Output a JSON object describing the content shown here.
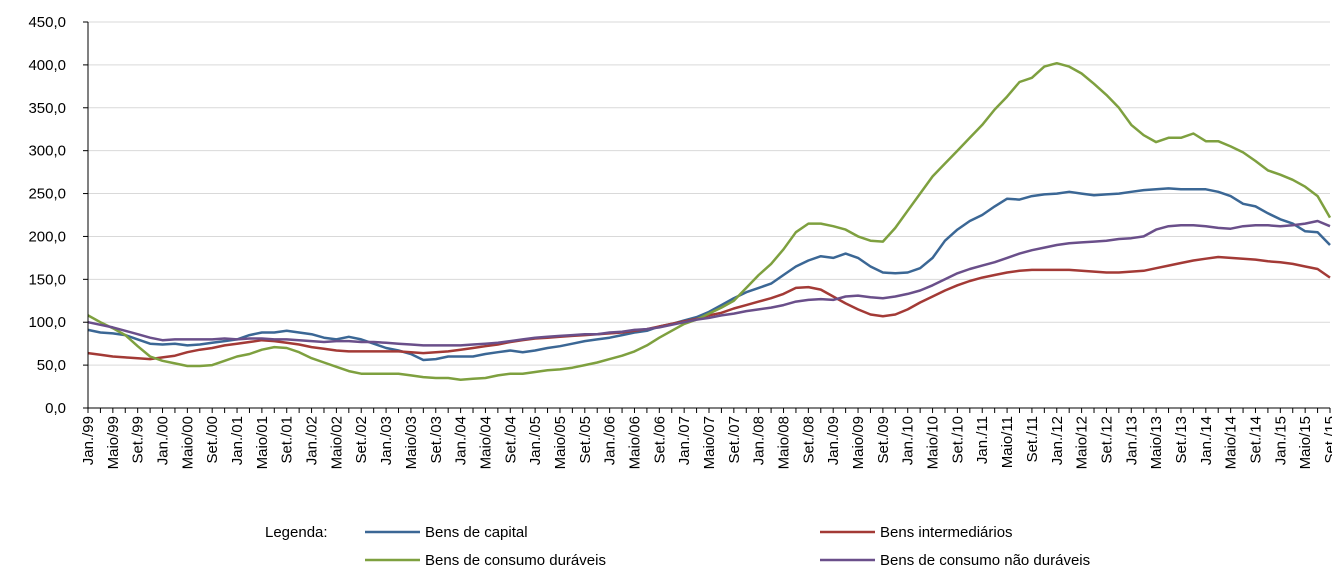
{
  "chart_data": {
    "type": "line",
    "categories": [
      "Jan./99",
      null,
      "Maio/99",
      null,
      "Set./99",
      null,
      "Jan./00",
      null,
      "Maio/00",
      null,
      "Set./00",
      null,
      "Jan./01",
      null,
      "Maio/01",
      null,
      "Set./01",
      null,
      "Jan./02",
      null,
      "Maio/02",
      null,
      "Set./02",
      null,
      "Jan./03",
      null,
      "Maio/03",
      null,
      "Set./03",
      null,
      "Jan./04",
      null,
      "Maio/04",
      null,
      "Set./04",
      null,
      "Jan./05",
      null,
      "Maio/05",
      null,
      "Set./05",
      null,
      "Jan./06",
      null,
      "Maio/06",
      null,
      "Set./06",
      null,
      "Jan./07",
      null,
      "Maio/07",
      null,
      "Set./07",
      null,
      "Jan./08",
      null,
      "Maio/08",
      null,
      "Set./08",
      null,
      "Jan./09",
      null,
      "Maio/09",
      null,
      "Set./09",
      null,
      "Jan./10",
      null,
      "Maio/10",
      null,
      "Set./10",
      null,
      "Jan./11",
      null,
      "Maio/11",
      null,
      "Set./11",
      null,
      "Jan./12",
      null,
      "Maio/12",
      null,
      "Set./12",
      null,
      "Jan./13",
      null,
      "Maio/13",
      null,
      "Set./13",
      null,
      "Jan./14",
      null,
      "Maio/14",
      null,
      "Set./14",
      null,
      "Jan./15",
      null,
      "Maio/15",
      null,
      "Set./15"
    ],
    "series": [
      {
        "name": "Bens de capital",
        "color": "#3b6795",
        "values": [
          91,
          88,
          87,
          85,
          80,
          75,
          74,
          75,
          73,
          74,
          76,
          78,
          80,
          85,
          88,
          88,
          90,
          88,
          86,
          82,
          80,
          83,
          80,
          75,
          70,
          67,
          63,
          56,
          57,
          60,
          60,
          60,
          63,
          65,
          67,
          65,
          67,
          70,
          72,
          75,
          78,
          80,
          82,
          85,
          88,
          90,
          95,
          98,
          102,
          106,
          112,
          120,
          128,
          135,
          140,
          145,
          155,
          165,
          172,
          177,
          175,
          180,
          175,
          165,
          158,
          157,
          158,
          163,
          175,
          195,
          208,
          218,
          225,
          235,
          244,
          243,
          247,
          249,
          250,
          252,
          250,
          248,
          249,
          250,
          252,
          254,
          255,
          256,
          255,
          255,
          255,
          252,
          247,
          238,
          235,
          227,
          220,
          215,
          206,
          205,
          190
        ]
      },
      {
        "name": "Bens intermediários",
        "color": "#a33a36",
        "values": [
          64,
          62,
          60,
          59,
          58,
          57,
          59,
          61,
          65,
          68,
          70,
          73,
          75,
          77,
          79,
          78,
          76,
          74,
          71,
          69,
          67,
          66,
          66,
          66,
          66,
          66,
          65,
          64,
          65,
          66,
          68,
          70,
          72,
          74,
          77,
          79,
          81,
          82,
          83,
          84,
          85,
          86,
          87,
          88,
          90,
          92,
          95,
          98,
          101,
          104,
          108,
          111,
          116,
          120,
          124,
          128,
          133,
          140,
          141,
          138,
          130,
          122,
          115,
          109,
          107,
          109,
          115,
          123,
          130,
          137,
          143,
          148,
          152,
          155,
          158,
          160,
          161,
          161,
          161,
          161,
          160,
          159,
          158,
          158,
          159,
          160,
          163,
          166,
          169,
          172,
          174,
          176,
          175,
          174,
          173,
          171,
          170,
          168,
          165,
          162,
          152
        ]
      },
      {
        "name": "Bens de consumo duráveis",
        "color": "#7ea03f",
        "values": [
          108,
          100,
          93,
          85,
          72,
          60,
          55,
          52,
          49,
          49,
          50,
          55,
          60,
          63,
          68,
          71,
          70,
          65,
          58,
          53,
          48,
          43,
          40,
          40,
          40,
          40,
          38,
          36,
          35,
          35,
          33,
          34,
          35,
          38,
          40,
          40,
          42,
          44,
          45,
          47,
          50,
          53,
          57,
          61,
          66,
          73,
          82,
          90,
          98,
          103,
          110,
          117,
          125,
          140,
          155,
          168,
          185,
          205,
          215,
          215,
          212,
          208,
          200,
          195,
          194,
          210,
          230,
          250,
          270,
          285,
          300,
          315,
          330,
          348,
          363,
          380,
          385,
          398,
          402,
          398,
          390,
          378,
          365,
          350,
          330,
          318,
          310,
          315,
          315,
          320,
          311,
          311,
          305,
          298,
          288,
          277,
          272,
          266,
          258,
          247,
          222
        ]
      },
      {
        "name": "Bens de consumo não duráveis",
        "color": "#6a4f8a",
        "values": [
          100,
          97,
          94,
          90,
          86,
          82,
          79,
          80,
          80,
          80,
          80,
          81,
          80,
          81,
          81,
          80,
          80,
          79,
          78,
          77,
          78,
          78,
          77,
          77,
          76,
          75,
          74,
          73,
          73,
          73,
          73,
          74,
          75,
          76,
          78,
          80,
          82,
          83,
          84,
          85,
          86,
          86,
          88,
          89,
          91,
          92,
          94,
          97,
          100,
          103,
          105,
          108,
          110,
          113,
          115,
          117,
          120,
          124,
          126,
          127,
          126,
          130,
          131,
          129,
          128,
          130,
          133,
          137,
          143,
          150,
          157,
          162,
          166,
          170,
          175,
          180,
          184,
          187,
          190,
          192,
          193,
          194,
          195,
          197,
          198,
          200,
          208,
          212,
          213,
          213,
          212,
          210,
          209,
          212,
          213,
          213,
          212,
          213,
          215,
          218,
          212
        ]
      }
    ],
    "ylim": [
      0,
      450
    ],
    "yticks": [
      {
        "value": 0,
        "label": "0,0"
      },
      {
        "value": 50,
        "label": "50,0"
      },
      {
        "value": 100,
        "label": "100,0"
      },
      {
        "value": 150,
        "label": "150,0"
      },
      {
        "value": 200,
        "label": "200,0"
      },
      {
        "value": 250,
        "label": "250,0"
      },
      {
        "value": 300,
        "label": "300,0"
      },
      {
        "value": 350,
        "label": "350,0"
      },
      {
        "value": 400,
        "label": "400,0"
      },
      {
        "value": 450,
        "label": "450,0"
      }
    ],
    "grid": true,
    "legend_title": "Legenda:",
    "legend": "bottom"
  }
}
